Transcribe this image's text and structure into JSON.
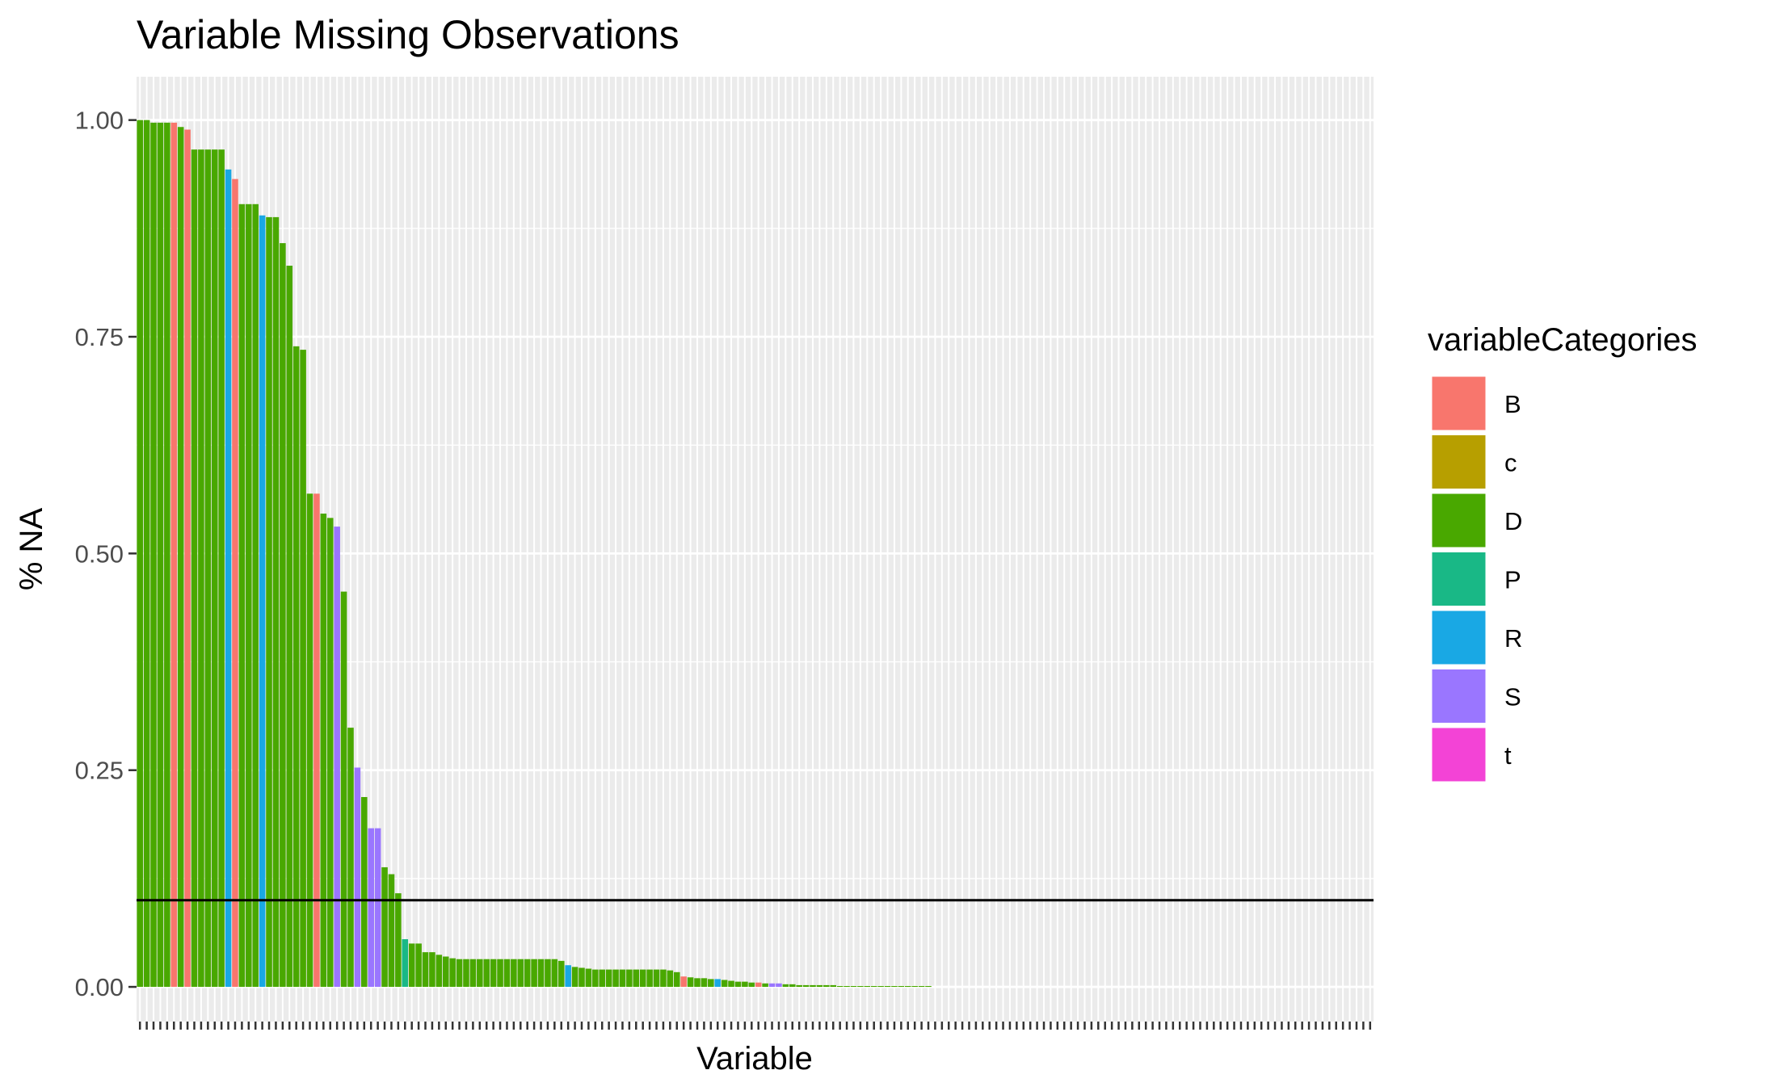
{
  "chart_data": {
    "type": "bar",
    "title": "Variable Missing Observations",
    "xlabel": "Variable",
    "ylabel": "% NA",
    "ylim": [
      -0.04,
      1.05
    ],
    "y_ticks": [
      0.0,
      0.25,
      0.5,
      0.75,
      1.0
    ],
    "y_tick_labels": [
      "0.00",
      "0.25",
      "0.50",
      "0.75",
      "1.00"
    ],
    "x_tick_labels_shown": false,
    "grid": true,
    "reference_line": {
      "y": 0.1,
      "color": "#000000"
    },
    "legend": {
      "title": "variableCategories",
      "position": "right",
      "entries": [
        {
          "label": "B",
          "color": "#F8766D"
        },
        {
          "label": "c",
          "color": "#B79F00"
        },
        {
          "label": "D",
          "color": "#49A800"
        },
        {
          "label": "P",
          "color": "#19B886"
        },
        {
          "label": "R",
          "color": "#19A8E4"
        },
        {
          "label": "S",
          "color": "#9A76FF"
        },
        {
          "label": "t",
          "color": "#F343D6"
        }
      ]
    },
    "n_categories": 182,
    "values": [
      1.0,
      1.0,
      0.997,
      0.997,
      0.997,
      0.997,
      0.992,
      0.989,
      0.966,
      0.966,
      0.966,
      0.966,
      0.966,
      0.943,
      0.932,
      0.903,
      0.903,
      0.903,
      0.89,
      0.888,
      0.888,
      0.858,
      0.832,
      0.739,
      0.735,
      0.569,
      0.569,
      0.546,
      0.541,
      0.531,
      0.456,
      0.299,
      0.253,
      0.219,
      0.183,
      0.183,
      0.138,
      0.13,
      0.108,
      0.055,
      0.05,
      0.05,
      0.04,
      0.04,
      0.037,
      0.035,
      0.033,
      0.032,
      0.032,
      0.032,
      0.032,
      0.032,
      0.032,
      0.032,
      0.032,
      0.032,
      0.032,
      0.032,
      0.032,
      0.032,
      0.032,
      0.032,
      0.03,
      0.025,
      0.023,
      0.022,
      0.021,
      0.02,
      0.02,
      0.02,
      0.02,
      0.02,
      0.02,
      0.02,
      0.02,
      0.02,
      0.02,
      0.02,
      0.019,
      0.017,
      0.012,
      0.011,
      0.01,
      0.01,
      0.009,
      0.009,
      0.008,
      0.007,
      0.006,
      0.006,
      0.005,
      0.005,
      0.004,
      0.004,
      0.004,
      0.003,
      0.003,
      0.002,
      0.002,
      0.002,
      0.002,
      0.002,
      0.002,
      0.001,
      0.001,
      0.001,
      0.001,
      0.001,
      0.001,
      0.001,
      0.001,
      0.001,
      0.001,
      0.001,
      0.001,
      0.001,
      0.001,
      0.0,
      0.0,
      0.0,
      0.0,
      0.0,
      0.0,
      0.0,
      0.0,
      0.0,
      0.0,
      0.0,
      0.0,
      0.0,
      0.0,
      0.0,
      0.0,
      0.0,
      0.0,
      0.0,
      0.0,
      0.0,
      0.0,
      0.0,
      0.0,
      0.0,
      0.0,
      0.0,
      0.0,
      0.0,
      0.0,
      0.0,
      0.0,
      0.0,
      0.0,
      0.0,
      0.0,
      0.0,
      0.0,
      0.0,
      0.0,
      0.0,
      0.0,
      0.0,
      0.0,
      0.0,
      0.0,
      0.0,
      0.0,
      0.0,
      0.0,
      0.0,
      0.0,
      0.0,
      0.0,
      0.0,
      0.0,
      0.0,
      0.0,
      0.0,
      0.0,
      0.0,
      0.0,
      0.0,
      0.0,
      0.0,
      0.0,
      0.0
    ],
    "bar_categories": [
      "D",
      "D",
      "D",
      "D",
      "D",
      "B",
      "D",
      "B",
      "D",
      "D",
      "D",
      "D",
      "D",
      "R",
      "B",
      "D",
      "D",
      "D",
      "R",
      "D",
      "D",
      "D",
      "D",
      "D",
      "D",
      "D",
      "B",
      "D",
      "D",
      "S",
      "D",
      "D",
      "S",
      "D",
      "S",
      "S",
      "D",
      "D",
      "D",
      "P",
      "D",
      "D",
      "D",
      "D",
      "D",
      "D",
      "D",
      "D",
      "D",
      "D",
      "D",
      "D",
      "D",
      "D",
      "D",
      "D",
      "D",
      "D",
      "D",
      "D",
      "D",
      "D",
      "D",
      "R",
      "D",
      "D",
      "D",
      "D",
      "D",
      "D",
      "D",
      "D",
      "D",
      "D",
      "D",
      "D",
      "D",
      "D",
      "D",
      "D",
      "B",
      "D",
      "D",
      "D",
      "D",
      "R",
      "D",
      "D",
      "D",
      "D",
      "D",
      "B",
      "D",
      "S",
      "S",
      "D",
      "D",
      "D",
      "D",
      "D",
      "D",
      "D",
      "D",
      "D",
      "D",
      "D",
      "D",
      "D",
      "D",
      "D",
      "D",
      "D",
      "D",
      "D",
      "D",
      "D",
      "D",
      "D",
      "D",
      "D",
      "D",
      "D",
      "D",
      "D",
      "D",
      "D",
      "D",
      "D",
      "D",
      "D",
      "D",
      "D",
      "D",
      "D",
      "D",
      "D",
      "D",
      "D",
      "D",
      "D",
      "D",
      "D",
      "D",
      "D",
      "D",
      "D",
      "D",
      "D",
      "D",
      "D",
      "D",
      "D",
      "D",
      "D",
      "D",
      "D",
      "D",
      "D",
      "D",
      "D",
      "D",
      "D",
      "D",
      "D",
      "D",
      "D",
      "D",
      "D",
      "D",
      "D",
      "D",
      "D",
      "D",
      "D",
      "D",
      "D",
      "D",
      "D",
      "D",
      "D",
      "D",
      "D"
    ]
  }
}
